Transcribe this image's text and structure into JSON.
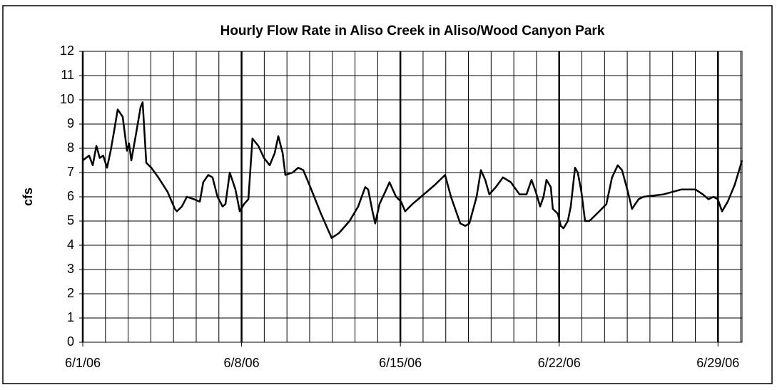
{
  "chart_data": {
    "type": "line",
    "title": "Hourly Flow Rate in Aliso Creek in Aliso/Wood Canyon Park",
    "y_label": "cfs",
    "color": "#000000",
    "grid": true,
    "xlim": [
      0,
      29.06
    ],
    "ylim": [
      0,
      12
    ],
    "yticks": [
      0,
      1,
      2,
      3,
      4,
      5,
      6,
      7,
      8,
      9,
      10,
      11,
      12
    ],
    "xticks": [
      {
        "value": 0,
        "label": "6/1/06"
      },
      {
        "value": 7,
        "label": "6/8/06"
      },
      {
        "value": 14,
        "label": "6/15/06"
      },
      {
        "value": 21,
        "label": "6/22/06"
      },
      {
        "value": 28,
        "label": "6/29/06"
      }
    ],
    "xminor": [
      1,
      2,
      3,
      4,
      5,
      6,
      8,
      9,
      10,
      11,
      12,
      13,
      15,
      16,
      17,
      18,
      19,
      20,
      22,
      23,
      24,
      25,
      26,
      27,
      29
    ],
    "x": [
      0,
      0.28,
      0.44,
      0.6,
      0.75,
      0.9,
      1.07,
      1.23,
      1.38,
      1.54,
      1.76,
      1.95,
      2.04,
      2.14,
      2.33,
      2.55,
      2.64,
      2.8,
      3.02,
      3.33,
      3.74,
      4.06,
      4.15,
      4.37,
      4.59,
      4.9,
      5.16,
      5.31,
      5.53,
      5.72,
      5.94,
      6.16,
      6.29,
      6.48,
      6.73,
      6.92,
      7.11,
      7.3,
      7.48,
      7.74,
      7.99,
      8.24,
      8.46,
      8.62,
      8.81,
      8.93,
      9.25,
      9.5,
      9.72,
      10.03,
      10.5,
      10.97,
      11.29,
      11.76,
      12.14,
      12.45,
      12.58,
      12.77,
      12.89,
      13.08,
      13.33,
      13.52,
      13.81,
      14.03,
      14.21,
      14.53,
      14.91,
      15.16,
      15.53,
      15.97,
      16.23,
      16.64,
      16.86,
      17.04,
      17.36,
      17.55,
      17.74,
      17.92,
      18.21,
      18.52,
      18.87,
      19.25,
      19.56,
      19.78,
      19.97,
      20.16,
      20.31,
      20.44,
      20.63,
      20.72,
      20.94,
      21.07,
      21.19,
      21.38,
      21.51,
      21.7,
      21.82,
      21.98,
      22.14,
      22.33,
      22.77,
      23.08,
      23.33,
      23.58,
      23.77,
      24.03,
      24.21,
      24.5,
      24.72,
      25.6,
      26.38,
      27.01,
      27.33,
      27.58,
      27.8,
      27.99,
      28.18,
      28.43,
      28.74,
      29.06
    ],
    "values": [
      7.5,
      7.7,
      7.3,
      8.1,
      7.6,
      7.7,
      7.2,
      7.9,
      8.7,
      9.6,
      9.3,
      7.9,
      8.2,
      7.5,
      8.5,
      9.7,
      9.9,
      7.4,
      7.2,
      6.8,
      6.2,
      5.5,
      5.4,
      5.6,
      6.0,
      5.9,
      5.8,
      6.6,
      6.9,
      6.8,
      6.0,
      5.6,
      5.7,
      7.0,
      6.3,
      5.4,
      5.7,
      5.9,
      8.4,
      8.1,
      7.6,
      7.3,
      7.8,
      8.5,
      7.8,
      6.9,
      7.0,
      7.2,
      7.1,
      6.4,
      5.3,
      4.3,
      4.5,
      5.0,
      5.6,
      6.4,
      6.3,
      5.4,
      4.9,
      5.7,
      6.2,
      6.6,
      6.0,
      5.8,
      5.4,
      5.7,
      6.0,
      6.2,
      6.5,
      6.9,
      6.0,
      4.9,
      4.8,
      4.9,
      6.0,
      7.1,
      6.7,
      6.1,
      6.4,
      6.8,
      6.6,
      6.1,
      6.1,
      6.7,
      6.2,
      5.6,
      6.0,
      6.7,
      6.4,
      5.5,
      5.3,
      4.8,
      4.7,
      5.0,
      5.6,
      7.2,
      7.0,
      6.2,
      5.0,
      5.0,
      5.4,
      5.7,
      6.8,
      7.3,
      7.1,
      6.2,
      5.5,
      5.9,
      6.0,
      6.1,
      6.3,
      6.3,
      6.1,
      5.9,
      6.0,
      5.9,
      5.4,
      5.8,
      6.5,
      7.5
    ]
  }
}
